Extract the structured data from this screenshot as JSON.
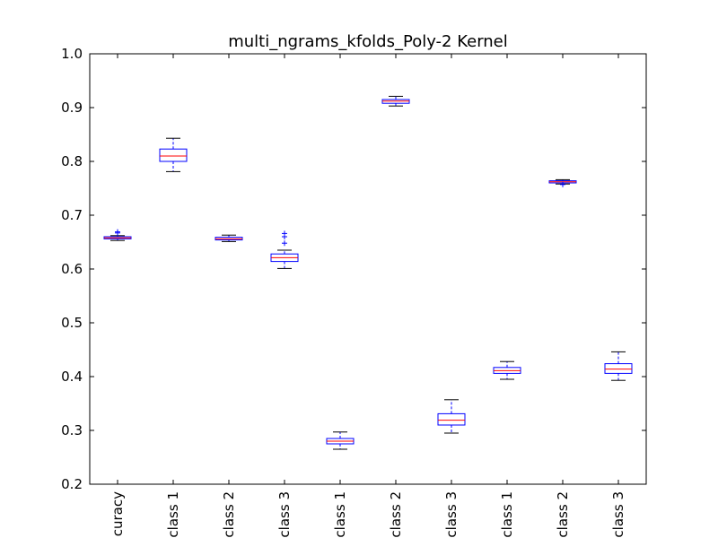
{
  "chart_data": {
    "type": "boxplot",
    "title": "multi_ngrams_kfolds_Poly-2 Kernel",
    "ylim": [
      0.2,
      1.0
    ],
    "yticks": [
      "0.2",
      "0.3",
      "0.4",
      "0.5",
      "0.6",
      "0.7",
      "0.8",
      "0.9",
      "1.0"
    ],
    "categories": [
      "curacy",
      "class 1",
      "class 2",
      "class 3",
      "class 1",
      "class 2",
      "class 3",
      "class 1",
      "class 2",
      "class 3"
    ],
    "boxes": [
      {
        "whislo": 0.653,
        "q1": 0.656,
        "med": 0.658,
        "q3": 0.66,
        "whishi": 0.662,
        "fliers": [
          0.667,
          0.669
        ]
      },
      {
        "whislo": 0.781,
        "q1": 0.8,
        "med": 0.81,
        "q3": 0.823,
        "whishi": 0.843,
        "fliers": []
      },
      {
        "whislo": 0.651,
        "q1": 0.654,
        "med": 0.656,
        "q3": 0.659,
        "whishi": 0.663,
        "fliers": []
      },
      {
        "whislo": 0.601,
        "q1": 0.614,
        "med": 0.621,
        "q3": 0.628,
        "whishi": 0.635,
        "fliers": [
          0.648,
          0.66,
          0.666
        ]
      },
      {
        "whislo": 0.265,
        "q1": 0.275,
        "med": 0.28,
        "q3": 0.285,
        "whishi": 0.297,
        "fliers": []
      },
      {
        "whislo": 0.903,
        "q1": 0.908,
        "med": 0.912,
        "q3": 0.915,
        "whishi": 0.921,
        "fliers": []
      },
      {
        "whislo": 0.295,
        "q1": 0.31,
        "med": 0.319,
        "q3": 0.331,
        "whishi": 0.357,
        "fliers": []
      },
      {
        "whislo": 0.395,
        "q1": 0.406,
        "med": 0.411,
        "q3": 0.417,
        "whishi": 0.428,
        "fliers": []
      },
      {
        "whislo": 0.758,
        "q1": 0.76,
        "med": 0.762,
        "q3": 0.764,
        "whishi": 0.766,
        "fliers": [
          0.757
        ]
      },
      {
        "whislo": 0.393,
        "q1": 0.406,
        "med": 0.414,
        "q3": 0.424,
        "whishi": 0.446,
        "fliers": []
      }
    ],
    "colors": {
      "box": "#0000ff",
      "median": "#ff0000",
      "whisker_cap": "#000000",
      "flier": "#0000ff",
      "axes": "#000000"
    },
    "grid": false
  }
}
